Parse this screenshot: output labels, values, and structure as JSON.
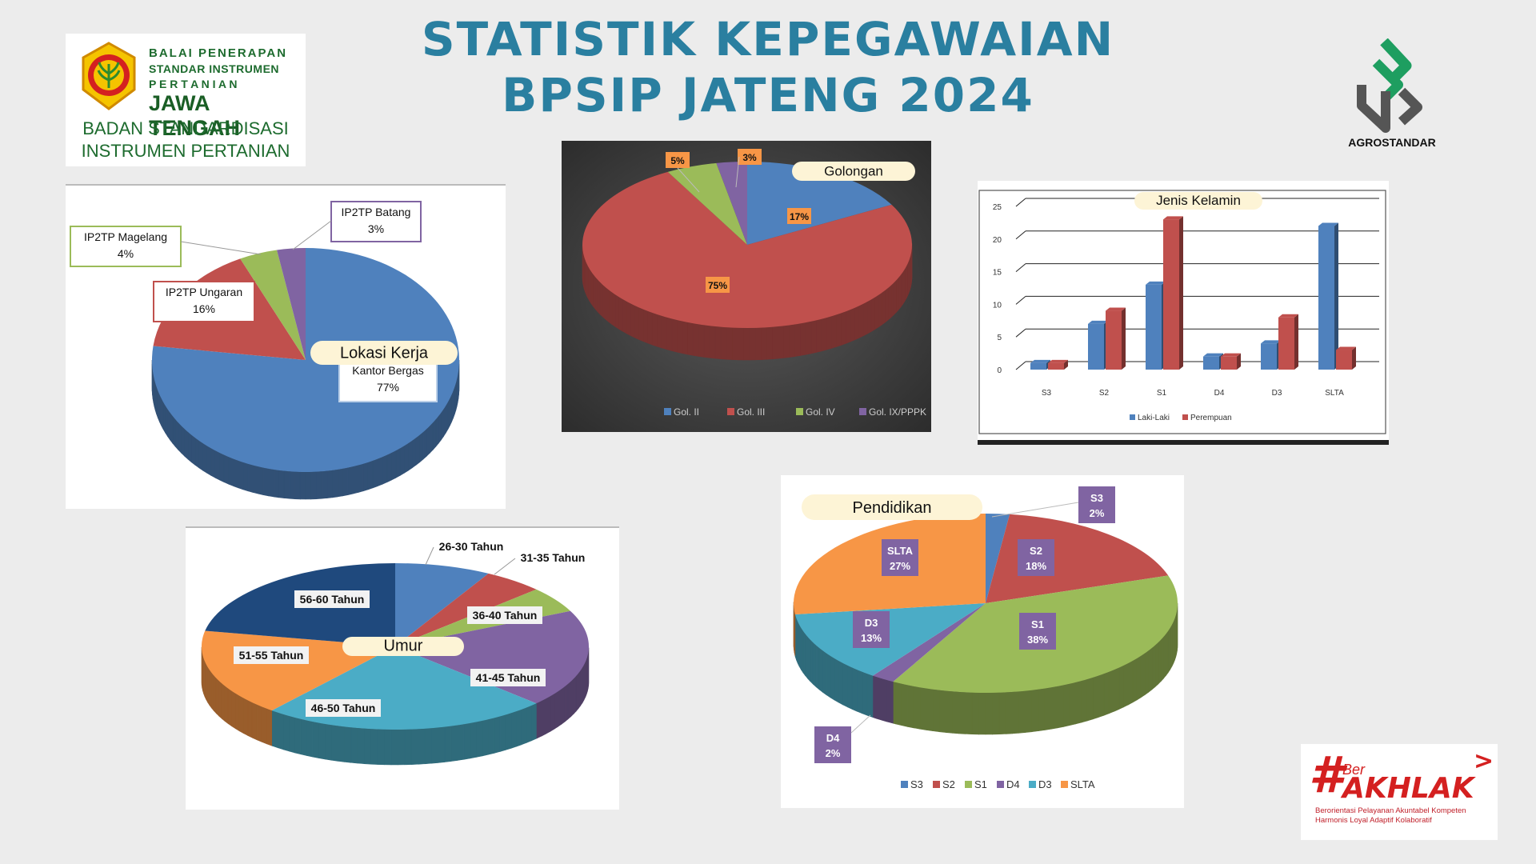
{
  "title": {
    "line1": "STATISTIK KEPEGAWAIAN",
    "line2": "BPSIP JATENG 2024"
  },
  "logo_left": {
    "line1": "BALAI PENERAPAN",
    "line2": "STANDAR INSTRUMEN",
    "line3": "P E R T A N I A N",
    "line4": "JAWA TENGAH",
    "line5": "BADAN STANDARDISASI",
    "line6": "INSTRUMEN PERTANIAN"
  },
  "logo_right": {
    "label": "AGROSTANDAR",
    "color": "#1e9e60"
  },
  "akhlak": {
    "prefix": "#",
    "ber": "Ber",
    "word": "AKHLAK",
    "arrow": ">",
    "sub1": "Berorientasi Pelayanan Akuntabel Kompeten",
    "sub2": "Harmonis Loyal Adaptif Kolaboratif"
  },
  "chart_data": [
    {
      "type": "pie",
      "title": "Lokasi Kerja",
      "categories": [
        "Kantor Bergas",
        "IP2TP Ungaran",
        "IP2TP Magelang",
        "IP2TP Batang"
      ],
      "values": [
        77,
        16,
        4,
        3
      ],
      "data_labels": [
        "Kantor Bergas",
        "77%",
        "IP2TP Ungaran",
        "16%",
        "IP2TP Magelang",
        "4%",
        "IP2TP Batang",
        "3%"
      ],
      "colors": [
        "#4f81bd",
        "#c0504d",
        "#9bbb59",
        "#8064a2"
      ]
    },
    {
      "type": "pie",
      "title": "Golongan",
      "categories": [
        "Gol. II",
        "Gol. III",
        "Gol. IV",
        "Gol. IX/PPPK"
      ],
      "values": [
        17,
        75,
        5,
        3
      ],
      "data_labels": [
        "17%",
        "75%",
        "5%",
        "3%"
      ],
      "legend": "bottom",
      "colors": [
        "#4f81bd",
        "#c0504d",
        "#9bbb59",
        "#8064a2"
      ]
    },
    {
      "type": "bar",
      "title": "Jenis Kelamin",
      "categories": [
        "S3",
        "S2",
        "S1",
        "D4",
        "D3",
        "SLTA"
      ],
      "series": [
        {
          "name": "Laki-Laki",
          "values": [
            1,
            7,
            13,
            2,
            4,
            22
          ]
        },
        {
          "name": "Perempuan",
          "values": [
            1,
            9,
            23,
            2,
            8,
            3
          ]
        }
      ],
      "ylim": [
        0,
        25
      ],
      "yticks": [
        "0",
        "5",
        "10",
        "15",
        "20",
        "25"
      ],
      "grid": true,
      "legend": "bottom",
      "colors": [
        "#4f81bd",
        "#c0504d"
      ]
    },
    {
      "type": "pie",
      "title": "Umur",
      "categories": [
        "26-30 Tahun",
        "31-35 Tahun",
        "36-40 Tahun",
        "41-45 Tahun",
        "46-50 Tahun",
        "51-55 Tahun",
        "56-60 Tahun"
      ],
      "values": [
        8,
        5,
        5,
        19,
        24,
        17,
        22
      ],
      "colors": [
        "#4f81bd",
        "#c0504d",
        "#9bbb59",
        "#8064a2",
        "#4bacc6",
        "#f79646",
        "#1f497d"
      ]
    },
    {
      "type": "pie",
      "title": "Pendidikan",
      "categories": [
        "S3",
        "S2",
        "S1",
        "D4",
        "D3",
        "SLTA"
      ],
      "values": [
        2,
        18,
        38,
        2,
        13,
        27
      ],
      "data_labels": [
        "S3",
        "2%",
        "S2",
        "18%",
        "S1",
        "38%",
        "D4",
        "2%",
        "D3",
        "13%",
        "SLTA",
        "27%"
      ],
      "legend": "bottom",
      "colors": [
        "#4f81bd",
        "#c0504d",
        "#9bbb59",
        "#8064a2",
        "#4bacc6",
        "#f79646"
      ]
    }
  ]
}
